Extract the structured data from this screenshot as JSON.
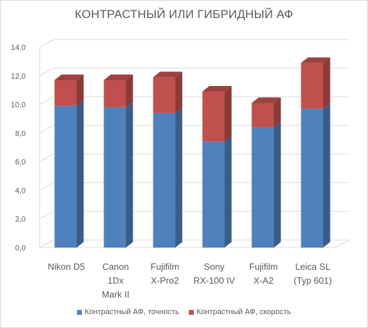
{
  "chart_data": {
    "type": "bar",
    "stacked": true,
    "three_d": true,
    "title": "КОНТРАСТНЫЙ ИЛИ ГИБРИДНЫЙ АФ",
    "categories": [
      [
        "Nikon D5"
      ],
      [
        "Canon",
        "1Dx",
        "Mark II"
      ],
      [
        "Fujifilm",
        "X-Pro2"
      ],
      [
        "Sony",
        "RX-100 IV"
      ],
      [
        "Fujifilm",
        "X-A2"
      ],
      [
        "Leica SL",
        "(Typ 601)"
      ]
    ],
    "series": [
      {
        "name": "Контрастный АФ, точность",
        "color": "#4f81bd",
        "values": [
          9.9,
          9.8,
          9.4,
          7.4,
          8.4,
          9.7
        ]
      },
      {
        "name": "Контрастный АФ, скорость",
        "color": "#c0504d",
        "values": [
          1.8,
          1.9,
          2.5,
          3.5,
          1.7,
          3.2
        ]
      }
    ],
    "ylim": [
      0,
      14
    ],
    "yticks": [
      "0,0",
      "2,0",
      "4,0",
      "6,0",
      "8,0",
      "10,0",
      "12,0",
      "14,0"
    ],
    "grid": true,
    "legend_position": "bottom"
  }
}
